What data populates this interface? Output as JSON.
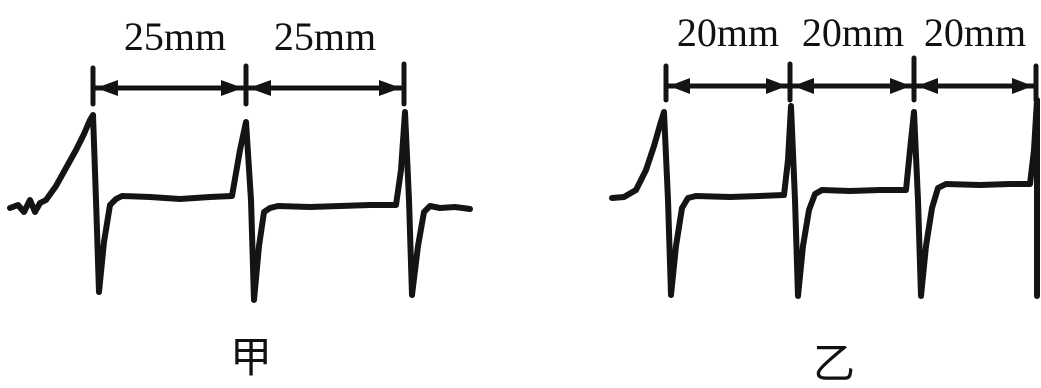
{
  "panel_jia": {
    "caption": "甲",
    "intervals": [
      "25mm",
      "25mm"
    ]
  },
  "panel_yi": {
    "caption": "乙",
    "intervals": [
      "20mm",
      "20mm",
      "20mm"
    ]
  },
  "colors": {
    "ink": "#141414",
    "background": "#ffffff"
  }
}
